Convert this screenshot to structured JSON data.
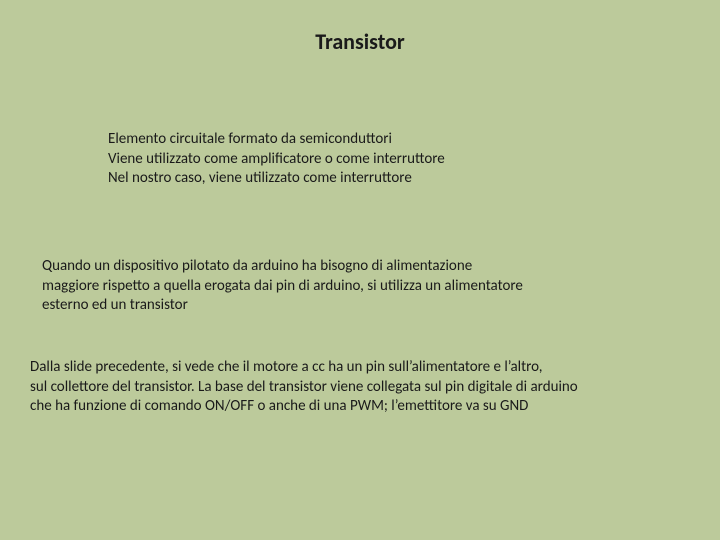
{
  "colors": {
    "background": "#bcca9b",
    "text": "#1a1a1a"
  },
  "typography": {
    "title_fontsize": 22,
    "body_fontsize": 15
  },
  "title": "Transistor",
  "block1": {
    "line1": "Elemento circuitale formato da semiconduttori",
    "line2": "Viene utilizzato come amplificatore o come interruttore",
    "line3": "Nel nostro caso, viene utilizzato come interruttore"
  },
  "block2": {
    "line1": "Quando un dispositivo pilotato da arduino ha bisogno di alimentazione",
    "line2": " maggiore rispetto a quella erogata dai pin di arduino, si utilizza un alimentatore",
    "line3": "esterno ed un transistor"
  },
  "block3": {
    "line1": "Dalla slide precedente, si vede che il motore a cc ha un pin sull’alimentatore e l’altro,",
    "line2": " sul collettore del transistor. La base del transistor viene collegata sul pin digitale di arduino",
    "line3": "che ha funzione di comando ON/OFF o anche di una PWM; l’emettitore va su GND"
  }
}
